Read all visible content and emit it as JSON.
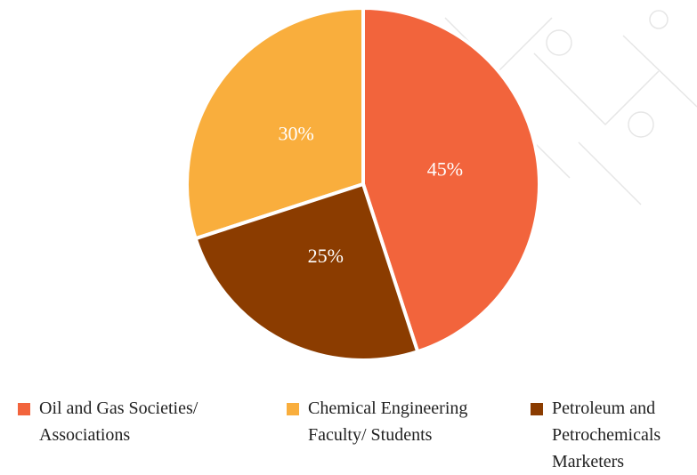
{
  "chart_data": {
    "type": "pie",
    "categories": [
      "Oil and Gas Societies/ Associations",
      "Chemical Engineering Faculty/ Students",
      "Petroleum and Petrochemicals Marketers"
    ],
    "values": [
      45,
      30,
      25
    ],
    "value_labels": [
      "45%",
      "30%",
      "25%"
    ],
    "colors": [
      "#f2643c",
      "#f9ae3d",
      "#8b3c00"
    ]
  }
}
